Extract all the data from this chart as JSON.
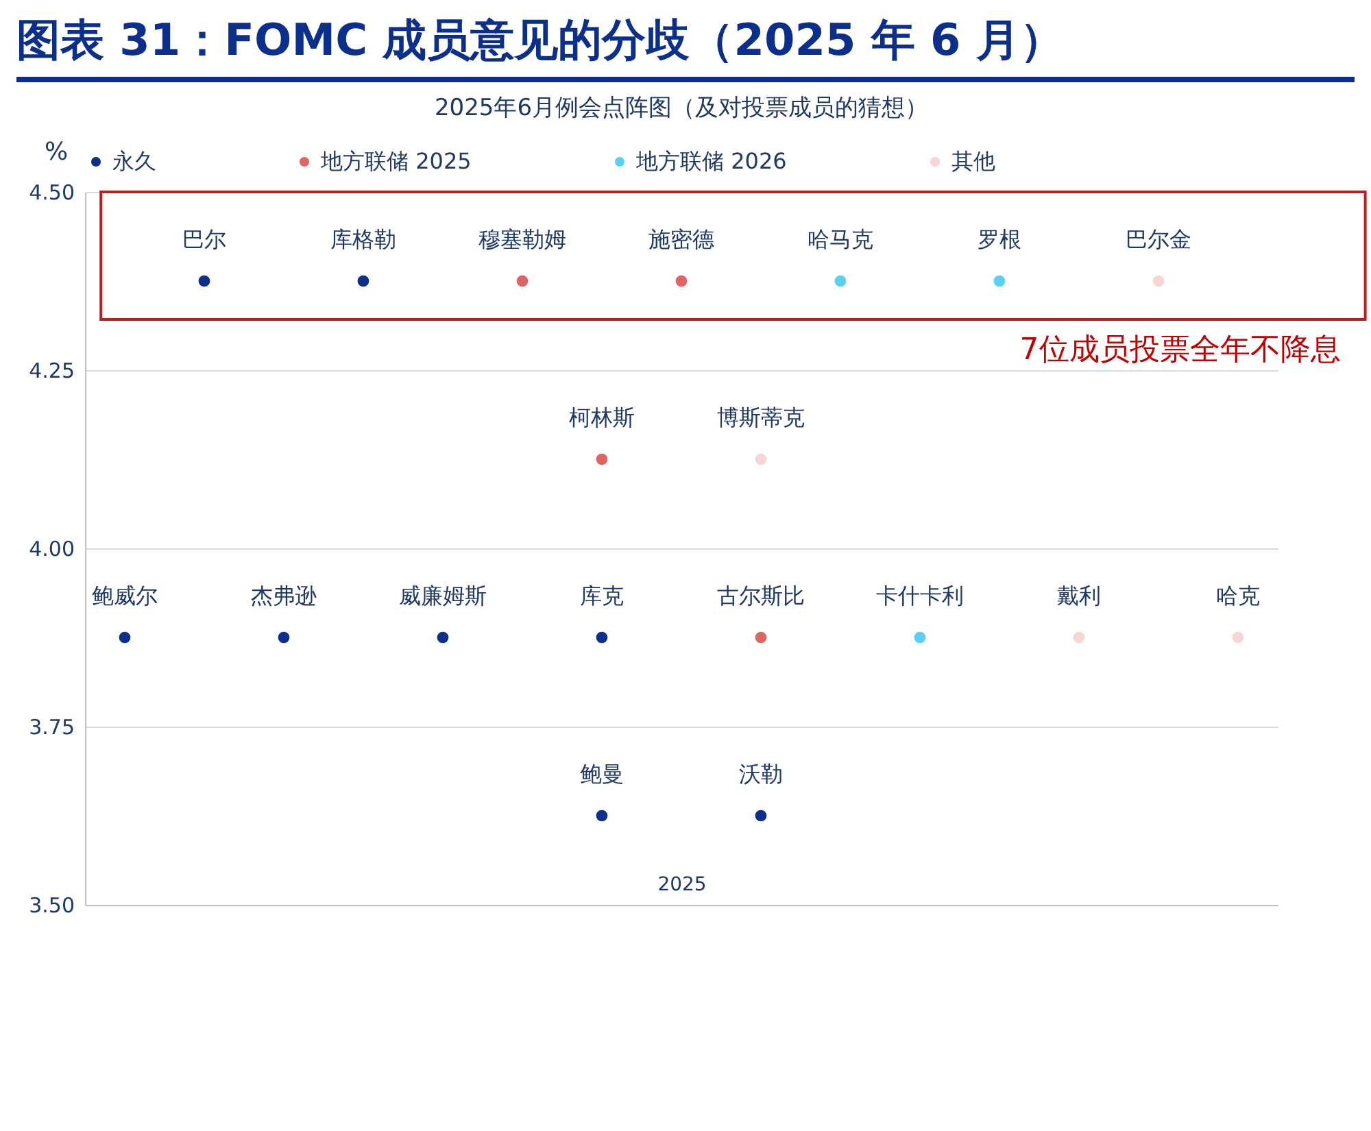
{
  "chart_data": {
    "type": "scatter",
    "title": "图表 31：FOMC 成员意见的分歧（2025 年 6 月）",
    "subtitle": "2025年6月例会点阵图（及对投票成员的猜想）",
    "ylabel": "%",
    "xlabel": "2025",
    "categories": [
      null,
      null,
      null,
      null,
      null,
      null,
      null,
      null,
      null,
      null,
      null,
      null,
      null,
      null,
      null
    ],
    "ylim": [
      3.5,
      4.5
    ],
    "yticks": [
      {
        "value": 3.5,
        "label": "3.50"
      },
      {
        "value": 3.75,
        "label": "3.75"
      },
      {
        "value": 4.0,
        "label": "4.00"
      },
      {
        "value": 4.25,
        "label": "4.25"
      },
      {
        "value": 4.5,
        "label": "4.50"
      }
    ],
    "grid": "y",
    "legend": "top",
    "marker": "circle",
    "series": [
      {
        "name": "永久",
        "color": "#0b2f8a",
        "values": [
          3.875,
          4.375,
          3.875,
          4.375,
          3.875,
          null,
          3.875,
          null,
          null,
          null,
          null,
          null,
          null,
          null,
          null
        ],
        "value_labels": [
          "鲍威尔",
          "巴尔",
          "杰弗逊",
          "库格勒",
          "威廉姆斯",
          null,
          "库克",
          null,
          null,
          null,
          null,
          null,
          null,
          null,
          null
        ]
      },
      {
        "color": "#0b2f8a",
        "values": [
          null,
          null,
          null,
          null,
          null,
          null,
          3.625,
          null,
          3.625,
          null,
          null,
          null,
          null,
          null,
          null
        ],
        "value_labels": [
          null,
          null,
          null,
          null,
          null,
          null,
          "鲍曼",
          null,
          "沃勒",
          null,
          null,
          null,
          null,
          null,
          null
        ]
      },
      {
        "name": "地方联储 2025",
        "color": "#e06464",
        "values": [
          null,
          null,
          null,
          null,
          null,
          4.375,
          4.125,
          4.375,
          3.875,
          null,
          null,
          null,
          null,
          null,
          null
        ],
        "value_labels": [
          null,
          null,
          null,
          null,
          null,
          "穆塞勒姆",
          "柯林斯",
          "施密德",
          "古尔斯比",
          null,
          null,
          null,
          null,
          null,
          null
        ]
      },
      {
        "name": "地方联储 2026",
        "color": "#5cd0f2",
        "values": [
          null,
          null,
          null,
          null,
          null,
          null,
          null,
          null,
          null,
          4.375,
          3.875,
          4.375,
          null,
          null,
          null
        ],
        "value_labels": [
          null,
          null,
          null,
          null,
          null,
          null,
          null,
          null,
          null,
          "哈马克",
          "卡什卡利",
          "罗根",
          null,
          null,
          null
        ]
      },
      {
        "name": "其他",
        "color": "#f7d5d5",
        "values": [
          null,
          null,
          null,
          null,
          null,
          null,
          null,
          null,
          4.125,
          null,
          null,
          null,
          3.875,
          4.375,
          3.875
        ],
        "value_labels": [
          null,
          null,
          null,
          null,
          null,
          null,
          null,
          null,
          "博斯蒂克",
          null,
          null,
          null,
          "戴利",
          "巴尔金",
          "哈克"
        ]
      }
    ],
    "annotations": [
      "7位成员投票全年不降息"
    ]
  }
}
